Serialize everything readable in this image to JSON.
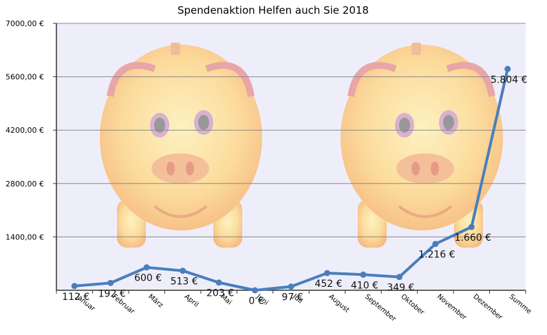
{
  "chart_data": {
    "type": "line",
    "title": "Spendenaktion Helfen auch Sie 2018",
    "xlabel": "",
    "ylabel": "",
    "categories": [
      "Januar",
      "Februar",
      "März",
      "April",
      "Mai",
      "Juni",
      "Juli",
      "August",
      "September",
      "Oktober",
      "November",
      "Dezember",
      "Summe"
    ],
    "series": [
      {
        "values": [
          112,
          192,
          600,
          513,
          203,
          0,
          97,
          452,
          410,
          349,
          1216,
          1660,
          5804
        ],
        "data_labels": [
          "112 €",
          "192 €",
          "600 €",
          "513 €",
          "203 €",
          "0 €",
          "97 €",
          "452 €",
          "410 €",
          "349 €",
          "1.216 €",
          "1.660 €",
          "5.804 €"
        ]
      }
    ],
    "y_ticks": [
      1400,
      2800,
      4200,
      5600,
      7000
    ],
    "y_tick_labels": [
      "1400,00 €",
      "2800,00 €",
      "4200,00 €",
      "5600,00 €",
      "7000,00 €"
    ],
    "ylim": [
      0,
      7000
    ],
    "grid": true,
    "legend": "none",
    "colors": {
      "line": "#4a7ebb",
      "plot_background": "#eeeefb",
      "gridline": "#888888",
      "picture": "piggy-bank-image"
    }
  }
}
